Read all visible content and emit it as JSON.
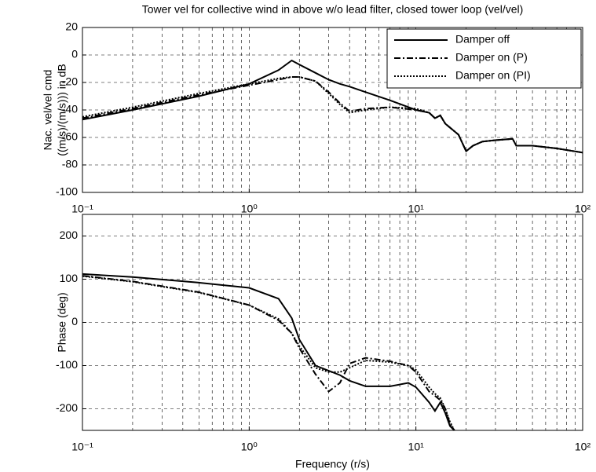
{
  "chart_data": [
    {
      "type": "line",
      "title": "Tower vel for collective wind in above w/o lead filter, closed tower loop (vel/vel)",
      "ylabel": [
        "Nac. vel/vel cmd",
        "((m/s)/(m/s))) in dB"
      ],
      "log_x": true,
      "grid": true,
      "minor_grid": true,
      "legend": "upper right",
      "x": [
        0.1,
        0.2,
        0.5,
        1,
        1.5,
        1.8,
        2,
        2.5,
        3,
        3.5,
        4,
        5,
        7,
        10,
        12,
        13,
        14,
        15,
        18,
        20,
        22,
        25,
        30,
        38,
        40,
        50,
        70,
        100
      ],
      "series": [
        {
          "name": "Damper off",
          "color": "#000000",
          "style": "solid",
          "values": [
            -47,
            -40,
            -30,
            -21,
            -11,
            -4,
            -7,
            -13,
            -18,
            -21,
            -23,
            -27,
            -33,
            -40,
            -42,
            -46,
            -44,
            -50,
            -58,
            -70,
            -66,
            -63,
            -62,
            -61,
            -66,
            -66,
            -68,
            -71
          ]
        },
        {
          "name": "Damper on (P)",
          "color": "#000000",
          "style": "dashdot",
          "values": [
            -46,
            -39,
            -29,
            -22,
            -18,
            -16,
            -16,
            -19,
            -27,
            -35,
            -41,
            -39,
            -38,
            -40,
            -42,
            -46,
            -44,
            -50,
            -58,
            -70,
            -66,
            -63,
            -62,
            -61,
            -66,
            -66,
            -68,
            -71
          ]
        },
        {
          "name": "Damper on (PI)",
          "color": "#000000",
          "style": "dotted",
          "values": [
            -45,
            -38,
            -28,
            -21,
            -17,
            -16,
            -16,
            -19,
            -28,
            -36,
            -42,
            -40,
            -38,
            -39,
            -42,
            -46,
            -44,
            -50,
            -58,
            -70,
            -66,
            -63,
            -62,
            -61,
            -66,
            -66,
            -68,
            -71
          ]
        }
      ],
      "xlim": [
        0.1,
        100
      ],
      "xticks": [
        {
          "value": 0.1,
          "label": "10⁻¹"
        },
        {
          "value": 1,
          "label": "10⁰"
        },
        {
          "value": 10,
          "label": "10¹"
        },
        {
          "value": 100,
          "label": "10²"
        }
      ],
      "ylim": [
        -100,
        20
      ],
      "yticks": [
        -100,
        -80,
        -60,
        -40,
        -20,
        0,
        20
      ]
    },
    {
      "type": "line",
      "ylabel": [
        "Phase (deg)"
      ],
      "xlabel": "Frequency (r/s)",
      "log_x": true,
      "grid": true,
      "minor_grid": true,
      "x": [
        0.1,
        0.2,
        0.5,
        1,
        1.5,
        1.8,
        2,
        2.5,
        3,
        3.5,
        4,
        5,
        7,
        9,
        10,
        12,
        13,
        14,
        15,
        16,
        17
      ],
      "series": [
        {
          "name": "Damper off",
          "color": "#000000",
          "style": "solid",
          "values": [
            112,
            105,
            92,
            80,
            55,
            10,
            -40,
            -100,
            -112,
            -122,
            -135,
            -148,
            -148,
            -140,
            -150,
            -185,
            -205,
            -185,
            -210,
            -240,
            -250
          ]
        },
        {
          "name": "Damper on (P)",
          "color": "#000000",
          "style": "dashdot",
          "values": [
            108,
            95,
            70,
            40,
            5,
            -25,
            -60,
            -120,
            -160,
            -140,
            -95,
            -82,
            -90,
            -100,
            -115,
            -160,
            -170,
            -180,
            -200,
            -235,
            -250
          ]
        },
        {
          "name": "Damper on (PI)",
          "color": "#000000",
          "style": "dotted",
          "values": [
            107,
            94,
            69,
            40,
            8,
            -25,
            -55,
            -105,
            -115,
            -115,
            -105,
            -88,
            -92,
            -100,
            -110,
            -150,
            -165,
            -175,
            -200,
            -230,
            -250
          ]
        }
      ],
      "xlim": [
        0.1,
        100
      ],
      "xticks": [
        {
          "value": 0.1,
          "label": "10⁻¹"
        },
        {
          "value": 1,
          "label": "10⁰"
        },
        {
          "value": 10,
          "label": "10¹"
        },
        {
          "value": 100,
          "label": "10²"
        }
      ],
      "ylim": [
        -250,
        250
      ],
      "yticks": [
        -200,
        -100,
        0,
        100,
        200
      ]
    }
  ]
}
